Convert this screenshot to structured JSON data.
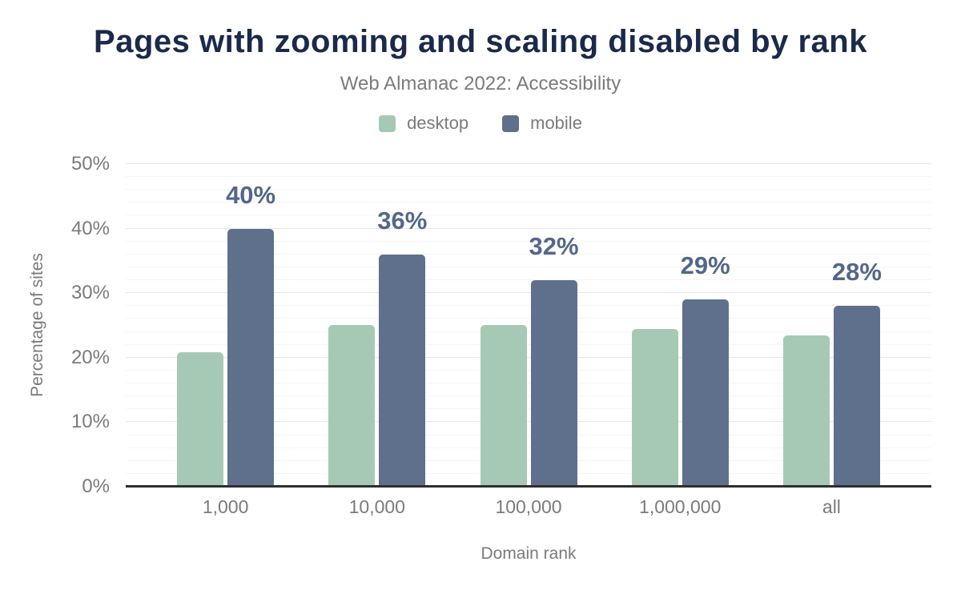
{
  "chart_data": {
    "type": "bar",
    "title": "Pages with zooming and scaling disabled by rank",
    "subtitle": "Web Almanac 2022: Accessibility",
    "categories": [
      "1,000",
      "10,000",
      "100,000",
      "1,000,000",
      "all"
    ],
    "series": [
      {
        "name": "desktop",
        "color": "#a6c9b6",
        "values": [
          20.8,
          25.1,
          25.1,
          24.4,
          23.4
        ],
        "data_labels": [
          "",
          "",
          "",
          "",
          ""
        ]
      },
      {
        "name": "mobile",
        "color": "#5e708c",
        "values": [
          40,
          36,
          32,
          29,
          28
        ],
        "data_labels": [
          "40%",
          "36%",
          "32%",
          "29%",
          "28%"
        ]
      }
    ],
    "xlabel": "Domain rank",
    "ylabel": "Percentage of sites",
    "ylim": [
      0,
      50
    ],
    "yticks": [
      "0%",
      "10%",
      "20%",
      "30%",
      "40%",
      "50%"
    ],
    "grid": {
      "minor_step": 2,
      "major_step": 10,
      "visible": true
    },
    "legend_position": "top"
  },
  "colors": {
    "title": "#1b2a4a",
    "subtitle_text": "#7b7b7b",
    "axis_text": "#7b7b7b",
    "value_label": "#54678a",
    "axis_line": "#2e2e2e",
    "grid_minor": "#f5f5f5",
    "grid_major": "#e7e7e7",
    "background": "#ffffff"
  }
}
